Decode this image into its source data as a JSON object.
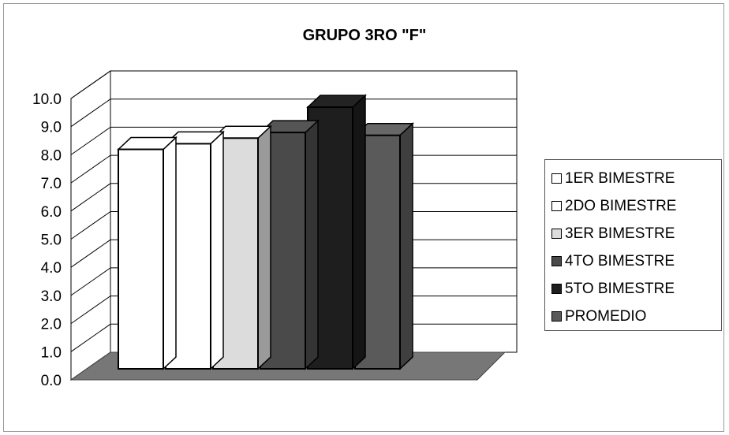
{
  "chart_data": {
    "type": "bar",
    "title": "GRUPO 3RO \"F\"",
    "xlabel": "",
    "ylabel": "",
    "ylim": [
      0,
      10
    ],
    "yticks": [
      "0.0",
      "1.0",
      "2.0",
      "3.0",
      "4.0",
      "5.0",
      "6.0",
      "7.0",
      "8.0",
      "9.0",
      "10.0"
    ],
    "grid": true,
    "legend_position": "right",
    "series": [
      {
        "name": "1ER BIMESTRE",
        "value": 7.8,
        "color": "#ffffff"
      },
      {
        "name": "2DO BIMESTRE",
        "value": 8.0,
        "color": "#ffffff"
      },
      {
        "name": "3ER BIMESTRE",
        "value": 8.2,
        "color": "#dcdcdc"
      },
      {
        "name": "4TO BIMESTRE",
        "value": 8.4,
        "color": "#4a4a4a"
      },
      {
        "name": "5TO BIMESTRE",
        "value": 9.3,
        "color": "#1e1e1e"
      },
      {
        "name": "PROMEDIO",
        "value": 8.3,
        "color": "#5a5a5a"
      }
    ]
  }
}
